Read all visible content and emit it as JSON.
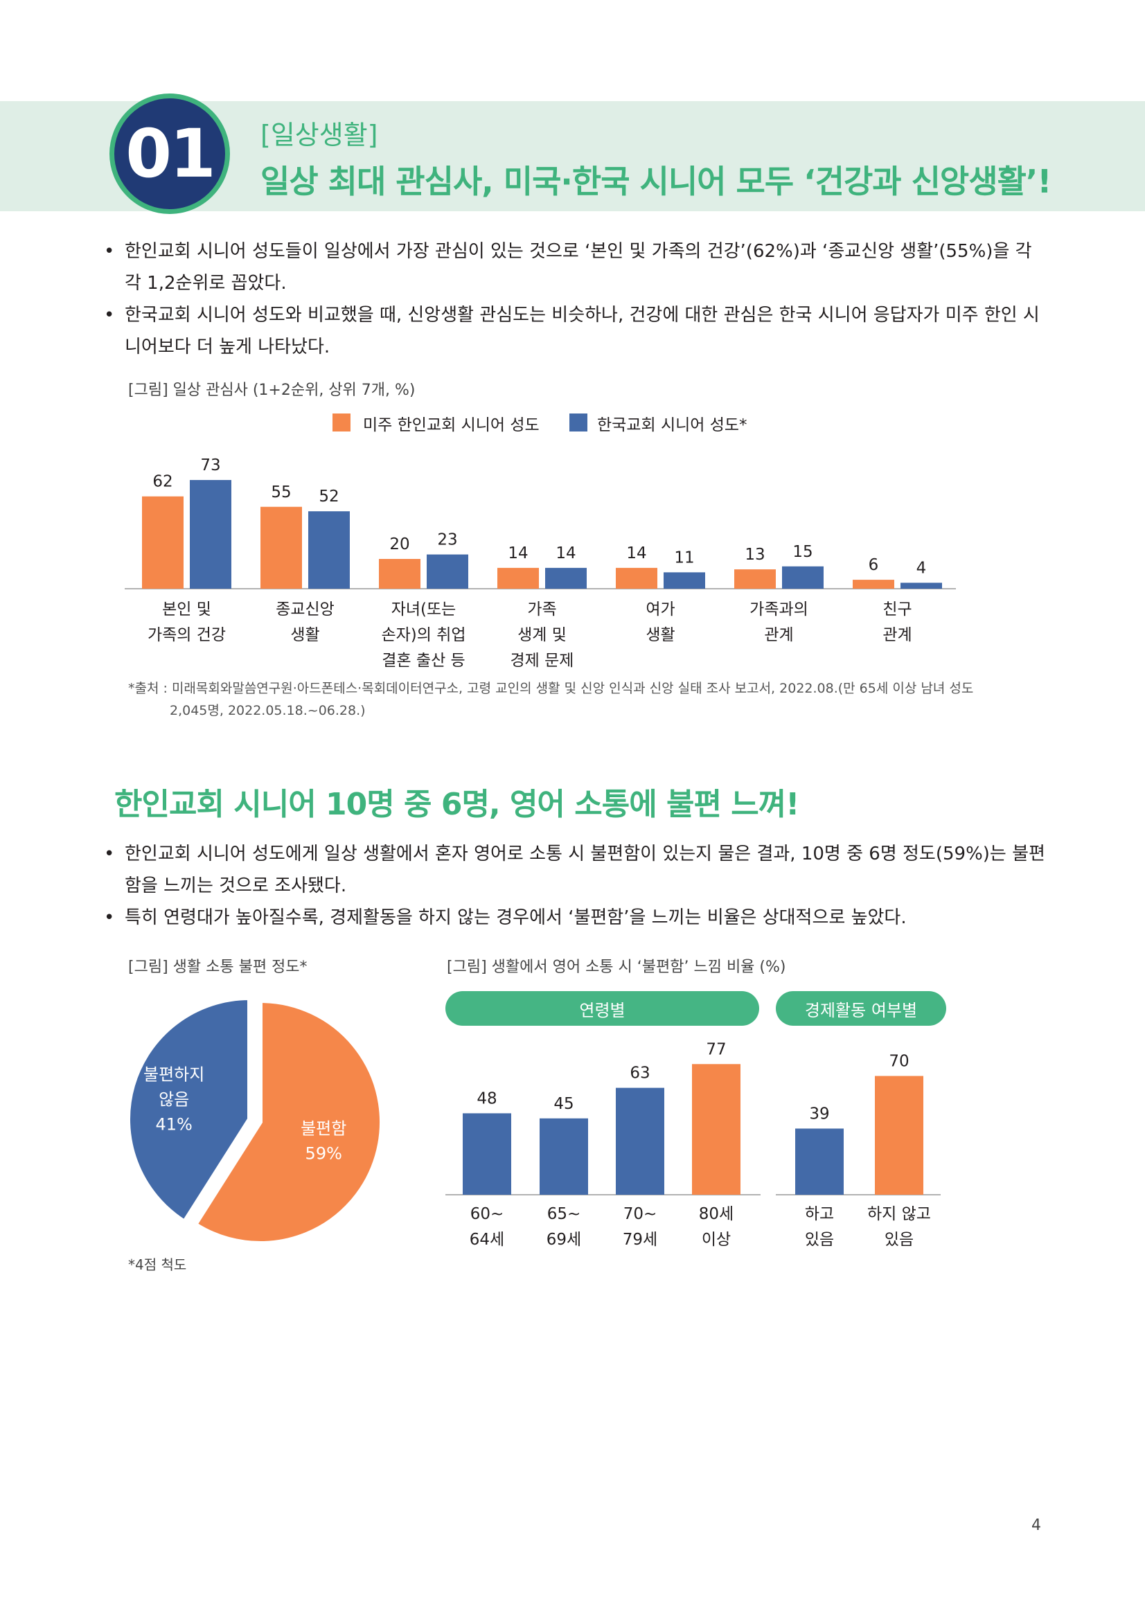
{
  "header": {
    "number": "01",
    "subtitle": "[일상생활]",
    "title": "일상 최대 관심사, 미국·한국 시니어 모두 ‘건강과 신앙생활’!"
  },
  "section1": {
    "bullets": [
      "한인교회 시니어 성도들이 일상에서 가장 관심이 있는 것으로 ‘본인 및 가족의 건강’(62%)과 ‘종교신앙 생활’(55%)을 각각 1,2순위로 꼽았다.",
      "한국교회 시니어 성도와 비교했을 때, 신앙생활 관심도는 비슷하나, 건강에 대한 관심은 한국 시니어 응답자가 미주 한인 시니어보다 더 높게 나타났다."
    ],
    "figure_caption": "[그림] 일상 관심사 (1+2순위, 상위 7개, %)",
    "source_line1": "*출처 : 미래목회와말씀연구원·아드폰테스·목회데이터연구소, 고령 교인의 생활 및 신앙 인식과 신앙 실태 조사 보고서, 2022.08.(만 65세 이상 남녀 성도",
    "source_line2": "2,045명, 2022.05.18.~06.28.)"
  },
  "section2": {
    "title": "한인교회 시니어 10명 중 6명, 영어 소통에 불편 느껴!",
    "bullets": [
      "한인교회 시니어 성도에게 일상 생활에서 혼자 영어로 소통 시 불편함이 있는지 물은 결과, 10명 중 6명 정도(59%)는 불편함을 느끼는 것으로 조사됐다.",
      "특히 연령대가 높아질수록, 경제활동을 하지 않는 경우에서 ‘불편함’을 느끼는 비율은 상대적으로 높았다."
    ],
    "pie_caption": "[그림] 생활 소통 불편 정도*",
    "bar_caption": "[그림] 생활에서 영어 소통 시 ‘불편함’ 느낌 비율 (%)",
    "pie_note": "*4점 척도",
    "pill_age": "연령별",
    "pill_econ": "경제활동 여부별"
  },
  "page_number": "4",
  "colors": {
    "orange": "#f5874a",
    "blue": "#436aa8",
    "green": "#3fb37d",
    "navy": "#203a75"
  },
  "chart_data": [
    {
      "type": "bar",
      "title": "[그림] 일상 관심사 (1+2순위, 상위 7개, %)",
      "categories": [
        [
          "본인 및",
          "가족의 건강"
        ],
        [
          "종교신앙",
          "생활"
        ],
        [
          "자녀(또는",
          "손자)의 취업",
          "결혼 출산 등"
        ],
        [
          "가족",
          "생계 및",
          "경제 문제"
        ],
        [
          "여가",
          "생활"
        ],
        [
          "가족과의",
          "관계"
        ],
        [
          "친구",
          "관계"
        ]
      ],
      "series": [
        {
          "name": "미주 한인교회 시니어 성도",
          "values": [
            62,
            55,
            20,
            14,
            14,
            13,
            6
          ]
        },
        {
          "name": "한국교회 시니어 성도*",
          "values": [
            73,
            52,
            23,
            14,
            11,
            15,
            4
          ]
        }
      ],
      "ylim": [
        0,
        80
      ],
      "legend": "top"
    },
    {
      "type": "pie",
      "title": "[그림] 생활 소통 불편 정도*",
      "slices": [
        {
          "label": "불편함",
          "value": 59,
          "text": [
            "불편함",
            "59%"
          ]
        },
        {
          "label": "불편하지 않음",
          "value": 41,
          "text": [
            "불편하지",
            "않음",
            "41%"
          ]
        }
      ]
    },
    {
      "type": "bar",
      "title": "[그림] 생활에서 영어 소통 시 ‘불편함’ 느낌 비율 (%)",
      "groups": [
        {
          "name": "연령별",
          "categories": [
            [
              "60~",
              "64세"
            ],
            [
              "65~",
              "69세"
            ],
            [
              "70~",
              "79세"
            ],
            [
              "80세",
              "이상"
            ]
          ],
          "values": [
            48,
            45,
            63,
            77
          ],
          "highlight": [
            false,
            false,
            false,
            true
          ]
        },
        {
          "name": "경제활동 여부별",
          "categories": [
            [
              "하고",
              "있음"
            ],
            [
              "하지 않고",
              "있음"
            ]
          ],
          "values": [
            39,
            70
          ],
          "highlight": [
            false,
            true
          ]
        }
      ],
      "ylim": [
        0,
        80
      ]
    }
  ]
}
